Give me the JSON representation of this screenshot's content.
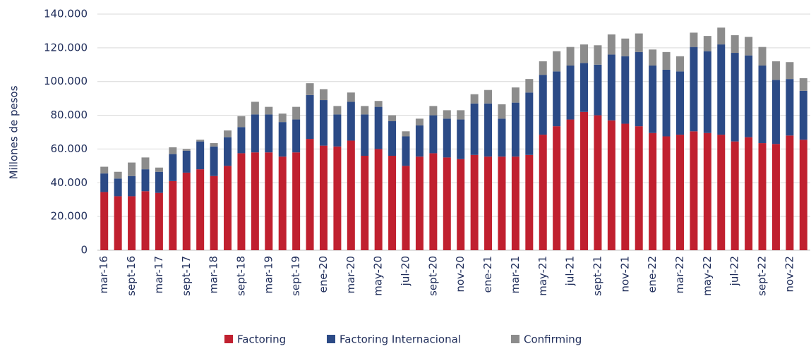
{
  "chart_data": {
    "type": "stacked_bar",
    "y_label": "Millones de pesos",
    "categories": [
      "mar-16",
      null,
      "sept-16",
      null,
      "mar-17",
      null,
      "sept-17",
      null,
      "mar-18",
      null,
      "sept-18",
      null,
      "mar-19",
      null,
      "sept-19",
      null,
      "ene-20",
      null,
      "mar-20",
      null,
      "may-20",
      null,
      "jul-20",
      null,
      "sept-20",
      null,
      "nov-20",
      null,
      "ene-21",
      null,
      "mar-21",
      null,
      "may-21",
      null,
      "jul-21",
      null,
      "sept-21",
      null,
      "nov-21",
      null,
      "ene-22",
      null,
      "mar-22",
      null,
      "may-22",
      null,
      "jul-22",
      null,
      "sept-22",
      null,
      "nov-22",
      null
    ],
    "series": [
      {
        "name": "Factoring",
        "color": "#c0202f",
        "values": [
          34500,
          32000,
          32000,
          35000,
          34000,
          41000,
          46000,
          48000,
          44000,
          50000,
          57500,
          58000,
          58000,
          55500,
          58000,
          66000,
          62000,
          61500,
          65000,
          56000,
          60000,
          56000,
          50000,
          55500,
          57500,
          55000,
          54000,
          56500,
          55500,
          55500,
          55500,
          56500,
          68500,
          73500,
          77500,
          82000,
          80000,
          77000,
          75000,
          73500,
          69500,
          67500,
          68500,
          70500,
          69500,
          68500,
          64500,
          67000,
          63500,
          63000,
          68000,
          65500
        ]
      },
      {
        "name": "Factoring Internacional",
        "color": "#2b4a86",
        "values": [
          11000,
          10500,
          12000,
          13000,
          12500,
          16000,
          13000,
          16500,
          17500,
          17000,
          15500,
          22500,
          22500,
          20500,
          19500,
          26000,
          27000,
          19000,
          23000,
          24500,
          25000,
          20500,
          17500,
          18500,
          22500,
          23000,
          23500,
          30500,
          31500,
          22500,
          32000,
          37000,
          35500,
          32500,
          32000,
          29000,
          30000,
          39000,
          40000,
          44000,
          40000,
          39500,
          37500,
          50000,
          48500,
          53500,
          52500,
          48500,
          46000,
          38000,
          33500,
          29000
        ]
      },
      {
        "name": "Confirming",
        "color": "#8c8c8c",
        "values": [
          4000,
          4000,
          8000,
          7000,
          2500,
          4000,
          1000,
          1000,
          2000,
          4000,
          6500,
          7500,
          4500,
          5000,
          7500,
          7000,
          6500,
          5000,
          5500,
          5000,
          3500,
          3500,
          3000,
          4000,
          5500,
          5000,
          5500,
          5500,
          8000,
          8500,
          9000,
          8000,
          8000,
          12000,
          11000,
          11000,
          11500,
          12000,
          10500,
          11000,
          9500,
          10500,
          9000,
          8500,
          9000,
          10000,
          10500,
          11000,
          11000,
          11000,
          10000,
          7500
        ]
      }
    ],
    "ylim": [
      0,
      140000
    ],
    "yticks": [
      0,
      {
        "value": 20000,
        "label": "20.000"
      },
      {
        "value": 40000,
        "label": "40.000"
      },
      {
        "value": 60000,
        "label": "60.000"
      },
      {
        "value": 80000,
        "label": "80.000"
      },
      {
        "value": 100000,
        "label": "100.000"
      },
      {
        "value": 120000,
        "label": "120.000"
      },
      {
        "value": 140000,
        "label": "140.000"
      }
    ],
    "grid": true,
    "legend": "bottom"
  }
}
